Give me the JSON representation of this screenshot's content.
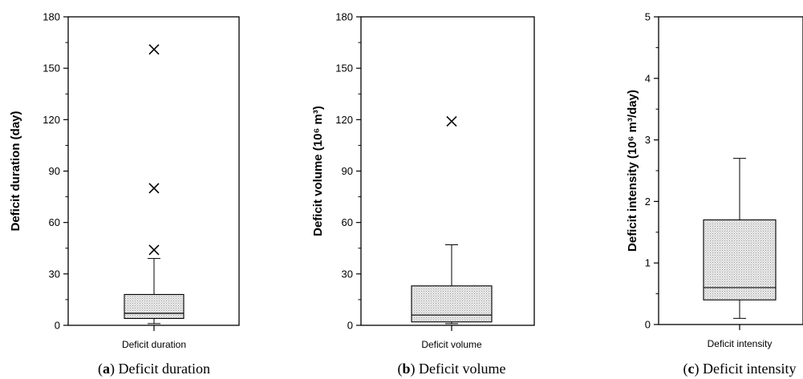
{
  "chart_data": [
    {
      "type": "box",
      "category": "Deficit duration",
      "ylabel": "Deficit duration (day)",
      "ylim": [
        0,
        180
      ],
      "yticks": [
        0,
        30,
        60,
        90,
        120,
        150,
        180
      ],
      "box": {
        "whisker_low": 1,
        "q1": 4,
        "median": 7,
        "q3": 18,
        "whisker_high": 39
      },
      "outliers": [
        44,
        80,
        161
      ],
      "caption_letter": "a",
      "caption_text": "Deficit duration"
    },
    {
      "type": "box",
      "category": "Deficit volume",
      "ylabel": "Deficit volume (10⁶ m³)",
      "ylim": [
        0,
        180
      ],
      "yticks": [
        0,
        30,
        60,
        90,
        120,
        150,
        180
      ],
      "box": {
        "whisker_low": 1,
        "q1": 2,
        "median": 6,
        "q3": 23,
        "whisker_high": 47
      },
      "outliers": [
        119
      ],
      "caption_letter": "b",
      "caption_text": "Deficit volume"
    },
    {
      "type": "box",
      "category": "Deficit intensity",
      "ylabel": "Deficit intensity (10⁶ m³/day)",
      "ylim": [
        0,
        5
      ],
      "yticks": [
        0,
        1,
        2,
        3,
        4,
        5
      ],
      "box": {
        "whisker_low": 0.1,
        "q1": 0.4,
        "median": 0.6,
        "q3": 1.7,
        "whisker_high": 2.7
      },
      "outliers": [],
      "caption_letter": "c",
      "caption_text": "Deficit intensity"
    }
  ],
  "colors": {
    "box_fill": "#e4e4e4",
    "stroke": "#000000"
  }
}
